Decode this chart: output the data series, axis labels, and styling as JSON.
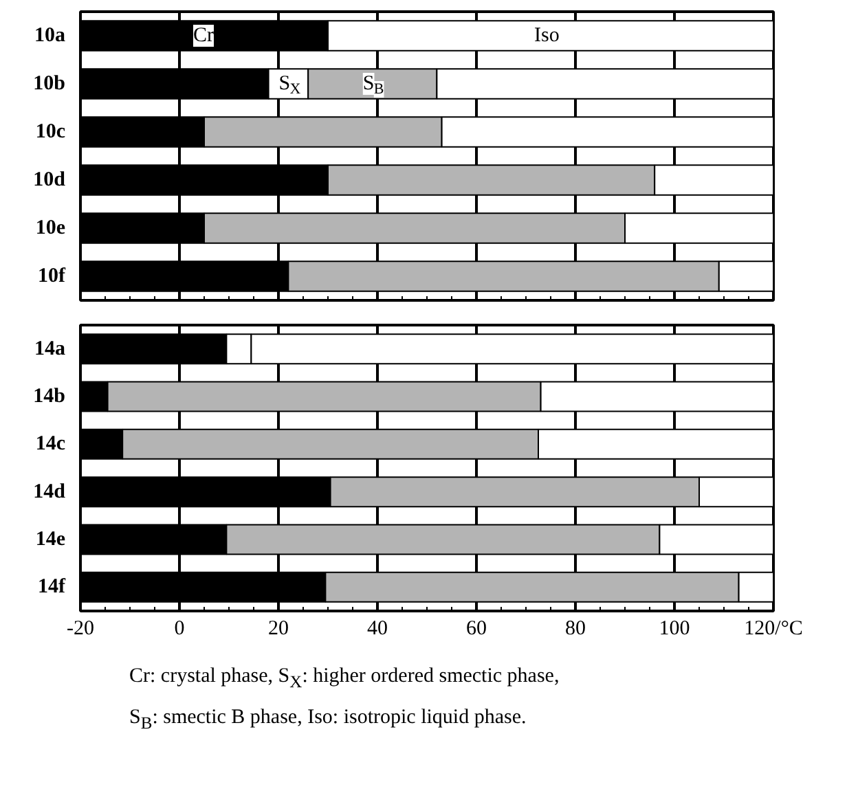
{
  "chart_data": [
    {
      "type": "bar",
      "orientation": "horizontal",
      "categories": [
        "10a",
        "10b",
        "10c",
        "10d",
        "10e",
        "10f"
      ],
      "series": [
        {
          "name": "Cr",
          "color": "#000000",
          "base": [
            -20,
            -20,
            -20,
            -20,
            -20,
            -20
          ],
          "values": [
            50,
            38,
            25,
            50,
            25,
            42
          ]
        },
        {
          "name": "S$_{X}$",
          "color": "#ffffff",
          "base": [
            null,
            18,
            null,
            null,
            null,
            null
          ],
          "values": [
            null,
            8,
            null,
            null,
            null,
            null
          ]
        },
        {
          "name": "S$_{B}$",
          "color": "#b4b4b4",
          "base": [
            null,
            26,
            5,
            30,
            5,
            22
          ],
          "values": [
            null,
            26,
            48,
            66,
            85,
            87
          ]
        },
        {
          "name": "Iso",
          "color": "#ffffff",
          "base": [
            30,
            52,
            53,
            96,
            90,
            109
          ],
          "values": [
            90,
            68,
            67,
            24,
            30,
            11
          ]
        }
      ],
      "xlim": [
        -20,
        120
      ],
      "xticks": [
        -20,
        0,
        20,
        40,
        60,
        80,
        100,
        120
      ],
      "grid": "x",
      "tick_labels": "y"
    },
    {
      "type": "bar",
      "orientation": "horizontal",
      "categories": [
        "14a",
        "14b",
        "14c",
        "14d",
        "14e",
        "14f"
      ],
      "series": [
        {
          "color": "#000000",
          "base": [
            -20,
            -20,
            -20,
            -20,
            -20,
            -20
          ],
          "values": [
            29.5,
            5.5,
            8.5,
            50.5,
            29.5,
            49.5
          ]
        },
        {
          "color": "#ffffff",
          "base": [
            9.5,
            null,
            null,
            null,
            null,
            null
          ],
          "values": [
            5,
            null,
            null,
            null,
            null,
            null
          ]
        },
        {
          "color": "#b4b4b4",
          "base": [
            null,
            -14.5,
            -11.5,
            30.5,
            9.5,
            29.5
          ],
          "values": [
            null,
            87.5,
            84,
            74.5,
            87.5,
            83.5
          ]
        },
        {
          "color": "#ffffff",
          "base": [
            14.5,
            73,
            72.5,
            105,
            97,
            113
          ],
          "values": [
            105.5,
            47,
            47.5,
            15,
            23,
            7
          ]
        }
      ],
      "xlim": [
        -20,
        120
      ],
      "xticks": [
        -20,
        0,
        20,
        40,
        60,
        80,
        100,
        {
          "value": 120,
          "label": "120/°C"
        }
      ],
      "grid": "x",
      "annotations": [
        "Cr: crystal phase, S$_{X}$: higher ordered smectic phase,",
        "S$_{B}$: smectic B phase, Iso: isotropic liquid phase."
      ]
    }
  ]
}
